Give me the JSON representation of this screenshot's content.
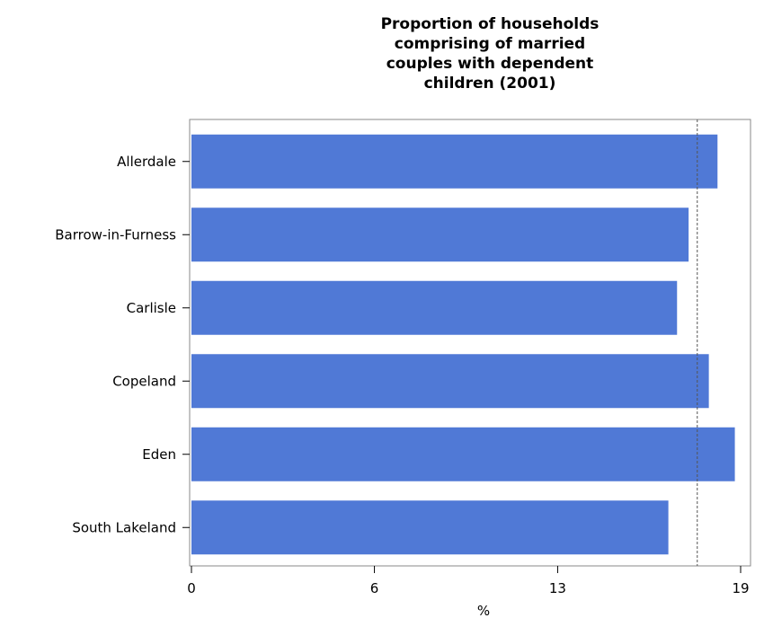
{
  "chart_data": {
    "type": "bar",
    "orientation": "horizontal",
    "title_lines": [
      "Proportion of households",
      "comprising of married",
      "couples with dependent",
      "children (2001)"
    ],
    "categories": [
      "Allerdale",
      "Barrow-in-Furness",
      "Carlisle",
      "Copeland",
      "Eden",
      "South Lakeland"
    ],
    "values": [
      18.2,
      17.2,
      16.8,
      17.9,
      18.8,
      16.5
    ],
    "xlabel": "%",
    "xticks": [
      "0",
      "6",
      "13",
      "19"
    ],
    "xtick_values": [
      0,
      6.33,
      12.67,
      19
    ],
    "xlim": [
      0,
      19.5
    ],
    "reference_line": 17.5,
    "bar_color": "#5079d6",
    "grid": false
  }
}
